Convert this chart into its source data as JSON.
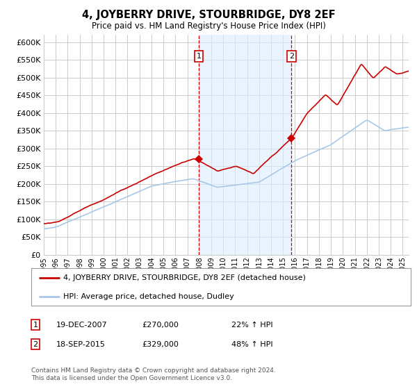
{
  "title": "4, JOYBERRY DRIVE, STOURBRIDGE, DY8 2EF",
  "subtitle": "Price paid vs. HM Land Registry's House Price Index (HPI)",
  "sale1_date": "19-DEC-2007",
  "sale1_price": 270000,
  "sale1_hpi_pct": "22% ↑ HPI",
  "sale1_year": 2007.96,
  "sale2_date": "18-SEP-2015",
  "sale2_price": 329000,
  "sale2_hpi_pct": "48% ↑ HPI",
  "sale2_year": 2015.71,
  "ylim_min": 0,
  "ylim_max": 620000,
  "yticks": [
    0,
    50000,
    100000,
    150000,
    200000,
    250000,
    300000,
    350000,
    400000,
    450000,
    500000,
    550000,
    600000
  ],
  "xlim_min": 1995,
  "xlim_max": 2025.5,
  "background_color": "#ffffff",
  "plot_bg_color": "#ffffff",
  "grid_color": "#cccccc",
  "hpi_line_color": "#a8c8e8",
  "price_line_color": "#cc0000",
  "sale_dot_color": "#cc0000",
  "shade_color": "#ddeeff",
  "legend_label_price": "4, JOYBERRY DRIVE, STOURBRIDGE, DY8 2EF (detached house)",
  "legend_label_hpi": "HPI: Average price, detached house, Dudley",
  "footer_text": "Contains HM Land Registry data © Crown copyright and database right 2024.\nThis data is licensed under the Open Government Licence v3.0.",
  "xtick_years": [
    1995,
    1996,
    1997,
    1998,
    1999,
    2000,
    2001,
    2002,
    2003,
    2004,
    2005,
    2006,
    2007,
    2008,
    2009,
    2010,
    2011,
    2012,
    2013,
    2014,
    2015,
    2016,
    2017,
    2018,
    2019,
    2020,
    2021,
    2022,
    2023,
    2024,
    2025
  ]
}
